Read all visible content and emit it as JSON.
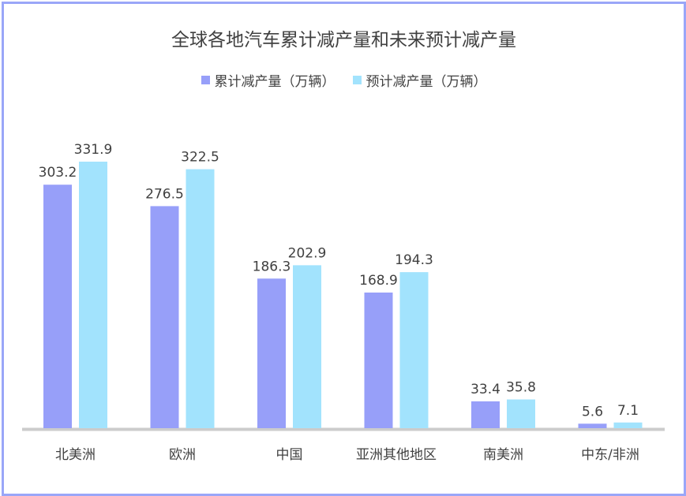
{
  "chart_data": {
    "type": "bar",
    "title": "全球各地汽车累计减产量和未来预计减产量",
    "categories": [
      "北美洲",
      "欧洲",
      "中国",
      "亚洲其他地区",
      "南美洲",
      "中东/非洲"
    ],
    "series": [
      {
        "name": "累计减产量（万辆）",
        "color": "#979ff9",
        "values": [
          303.2,
          276.5,
          186.3,
          168.9,
          33.4,
          5.6
        ],
        "labels": [
          "303.2",
          "276.5",
          "186.3",
          "168.9",
          "33.4",
          "5.6"
        ]
      },
      {
        "name": "预计减产量（万辆）",
        "color": "#a2e3fd",
        "values": [
          331.9,
          322.5,
          202.9,
          194.3,
          35.8,
          7.1
        ],
        "labels": [
          "331.9",
          "322.5",
          "202.9",
          "194.3",
          "35.8",
          "7.1"
        ]
      }
    ],
    "ylim": [
      0,
      340
    ],
    "grid": false,
    "legend_position": "top-center"
  }
}
